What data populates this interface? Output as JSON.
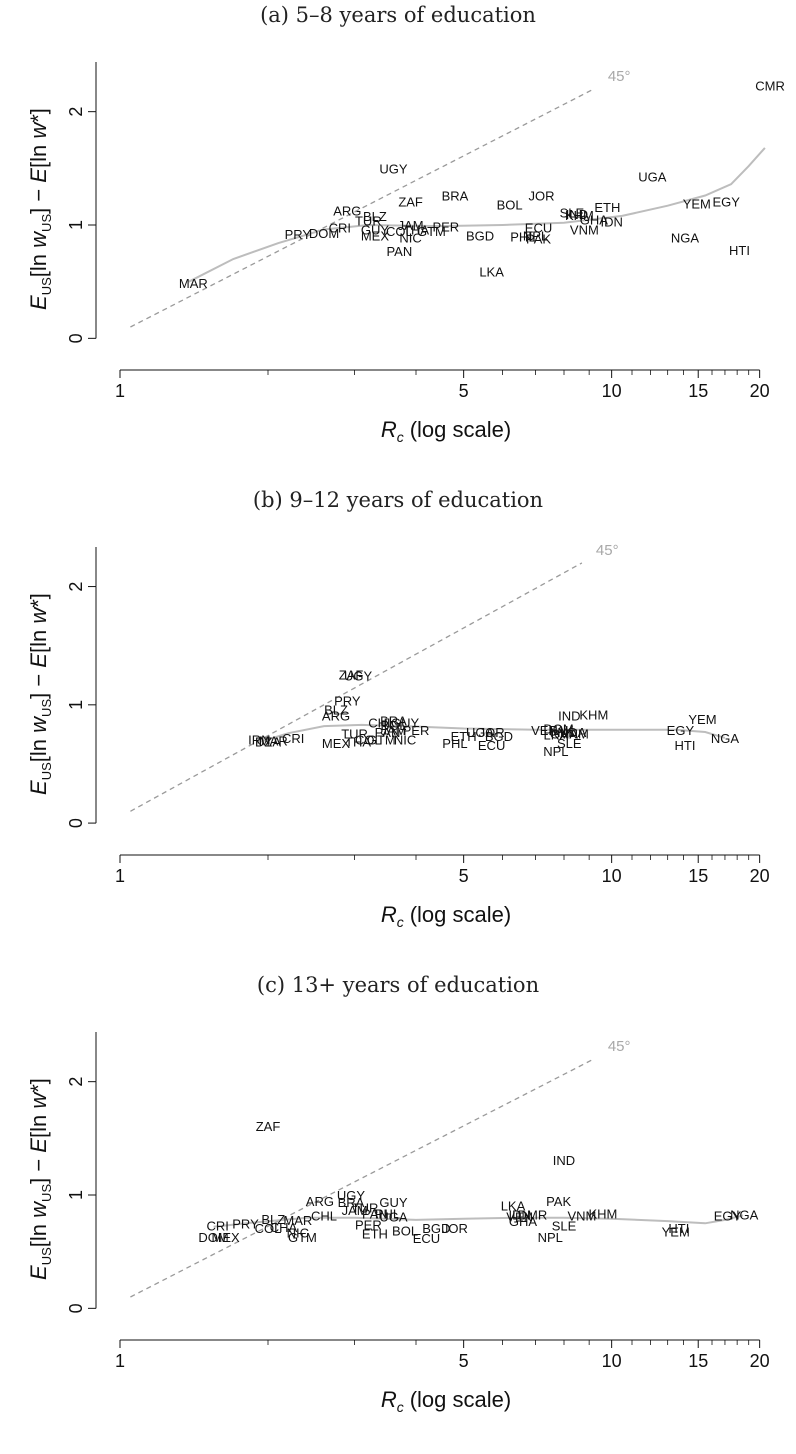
{
  "chart_data": [
    {
      "type": "scatter",
      "title": "(a) 5–8 years of education",
      "xlabel_var": "R",
      "xlabel_sub": "c",
      "xlabel_rest": "(log scale)",
      "xscale": "log",
      "xlim": [
        1,
        22
      ],
      "ylim": [
        -0.05,
        2.35
      ],
      "xticks": [
        1,
        5,
        10,
        15,
        20
      ],
      "yticks": [
        0,
        1,
        2
      ],
      "ref_label": "45°",
      "ref_end_x": 9.2,
      "fit": [
        [
          1.38,
          0.5
        ],
        [
          1.7,
          0.7
        ],
        [
          2.1,
          0.84
        ],
        [
          2.6,
          0.96
        ],
        [
          3.2,
          1.0
        ],
        [
          4.5,
          0.99
        ],
        [
          6,
          1.0
        ],
        [
          8,
          1.02
        ],
        [
          10.5,
          1.08
        ],
        [
          13,
          1.17
        ],
        [
          15.5,
          1.26
        ],
        [
          17.5,
          1.36
        ],
        [
          19,
          1.52
        ],
        [
          20.5,
          1.68
        ]
      ],
      "points": [
        {
          "label": "CMR",
          "x": 21.0,
          "y": 2.22
        },
        {
          "label": "UGY",
          "x": 3.6,
          "y": 1.49
        },
        {
          "label": "UGA",
          "x": 12.1,
          "y": 1.42
        },
        {
          "label": "BRA",
          "x": 4.8,
          "y": 1.25
        },
        {
          "label": "JOR",
          "x": 7.2,
          "y": 1.25
        },
        {
          "label": "BOL",
          "x": 6.2,
          "y": 1.17
        },
        {
          "label": "ZAF",
          "x": 3.9,
          "y": 1.2
        },
        {
          "label": "ETH",
          "x": 9.8,
          "y": 1.15
        },
        {
          "label": "EGY",
          "x": 17.1,
          "y": 1.2
        },
        {
          "label": "YEM",
          "x": 14.9,
          "y": 1.18
        },
        {
          "label": "ARG",
          "x": 2.9,
          "y": 1.12
        },
        {
          "label": "BLZ",
          "x": 3.3,
          "y": 1.07
        },
        {
          "label": "TUR",
          "x": 3.2,
          "y": 1.03
        },
        {
          "label": "SLE",
          "x": 8.3,
          "y": 1.1
        },
        {
          "label": "KHM",
          "x": 8.6,
          "y": 1.08
        },
        {
          "label": "IND",
          "x": 8.5,
          "y": 1.09
        },
        {
          "label": "GHA",
          "x": 9.2,
          "y": 1.04
        },
        {
          "label": "IDN",
          "x": 10.0,
          "y": 1.02
        },
        {
          "label": "JAM",
          "x": 3.9,
          "y": 0.99
        },
        {
          "label": "PER",
          "x": 4.6,
          "y": 0.98
        },
        {
          "label": "CRI",
          "x": 2.8,
          "y": 0.97
        },
        {
          "label": "GUY",
          "x": 3.3,
          "y": 0.95
        },
        {
          "label": "COL",
          "x": 3.7,
          "y": 0.94
        },
        {
          "label": "THA",
          "x": 4.0,
          "y": 0.95
        },
        {
          "label": "GTM",
          "x": 4.3,
          "y": 0.94
        },
        {
          "label": "ECU",
          "x": 7.1,
          "y": 0.97
        },
        {
          "label": "VNM",
          "x": 8.8,
          "y": 0.95
        },
        {
          "label": "DOM",
          "x": 2.6,
          "y": 0.92
        },
        {
          "label": "PRY",
          "x": 2.3,
          "y": 0.91
        },
        {
          "label": "MEX",
          "x": 3.3,
          "y": 0.9
        },
        {
          "label": "NIC",
          "x": 3.9,
          "y": 0.88
        },
        {
          "label": "BGD",
          "x": 5.4,
          "y": 0.9
        },
        {
          "label": "NPL",
          "x": 7.0,
          "y": 0.9
        },
        {
          "label": "PHL",
          "x": 6.6,
          "y": 0.89
        },
        {
          "label": "PAK",
          "x": 7.1,
          "y": 0.87
        },
        {
          "label": "NGA",
          "x": 14.1,
          "y": 0.88
        },
        {
          "label": "HTI",
          "x": 18.2,
          "y": 0.77
        },
        {
          "label": "PAN",
          "x": 3.7,
          "y": 0.76
        },
        {
          "label": "LKA",
          "x": 5.7,
          "y": 0.58
        },
        {
          "label": "MAR",
          "x": 1.41,
          "y": 0.48
        }
      ]
    },
    {
      "type": "scatter",
      "title": "(b) 9–12 years of education",
      "xlabel_var": "R",
      "xlabel_sub": "c",
      "xlabel_rest": "(log scale)",
      "xscale": "log",
      "xlim": [
        1,
        22
      ],
      "ylim": [
        -0.05,
        2.25
      ],
      "xticks": [
        1,
        5,
        10,
        15,
        20
      ],
      "yticks": [
        0,
        1,
        2
      ],
      "ref_label": "45°",
      "ref_end_x": 8.7,
      "fit": [
        [
          1.9,
          0.68
        ],
        [
          2.2,
          0.76
        ],
        [
          2.6,
          0.82
        ],
        [
          3.1,
          0.83
        ],
        [
          3.8,
          0.82
        ],
        [
          5,
          0.8
        ],
        [
          7,
          0.79
        ],
        [
          10,
          0.79
        ],
        [
          13.5,
          0.79
        ],
        [
          15.5,
          0.77
        ],
        [
          17,
          0.72
        ]
      ],
      "points": [
        {
          "label": "ZAF",
          "x": 2.95,
          "y": 1.25
        },
        {
          "label": "UGY",
          "x": 3.05,
          "y": 1.24
        },
        {
          "label": "PRY",
          "x": 2.9,
          "y": 1.03
        },
        {
          "label": "BLZ",
          "x": 2.75,
          "y": 0.95
        },
        {
          "label": "ARG",
          "x": 2.75,
          "y": 0.9
        },
        {
          "label": "IND",
          "x": 8.2,
          "y": 0.9
        },
        {
          "label": "KHM",
          "x": 9.2,
          "y": 0.91
        },
        {
          "label": "YEM",
          "x": 15.3,
          "y": 0.87
        },
        {
          "label": "BRA",
          "x": 3.6,
          "y": 0.86
        },
        {
          "label": "CHL",
          "x": 3.4,
          "y": 0.84
        },
        {
          "label": "GUY",
          "x": 3.8,
          "y": 0.84
        },
        {
          "label": "BOL",
          "x": 3.6,
          "y": 0.82
        },
        {
          "label": "JAM",
          "x": 3.6,
          "y": 0.78
        },
        {
          "label": "PER",
          "x": 4.0,
          "y": 0.78
        },
        {
          "label": "PAN",
          "x": 3.5,
          "y": 0.76
        },
        {
          "label": "UGA",
          "x": 5.4,
          "y": 0.76
        },
        {
          "label": "JOR",
          "x": 5.7,
          "y": 0.76
        },
        {
          "label": "VEN",
          "x": 7.3,
          "y": 0.78
        },
        {
          "label": "DOM",
          "x": 7.8,
          "y": 0.79
        },
        {
          "label": "PAK",
          "x": 7.9,
          "y": 0.78
        },
        {
          "label": "EGY",
          "x": 13.8,
          "y": 0.78
        },
        {
          "label": "TUR",
          "x": 3.0,
          "y": 0.75
        },
        {
          "label": "ETH",
          "x": 5.0,
          "y": 0.73
        },
        {
          "label": "BGD",
          "x": 5.9,
          "y": 0.73
        },
        {
          "label": "LKA",
          "x": 7.7,
          "y": 0.74
        },
        {
          "label": "GHA",
          "x": 8.0,
          "y": 0.75
        },
        {
          "label": "VNM",
          "x": 8.4,
          "y": 0.75
        },
        {
          "label": "MDA",
          "x": 8.3,
          "y": 0.76
        },
        {
          "label": "NGA",
          "x": 17.0,
          "y": 0.71
        },
        {
          "label": "COL",
          "x": 3.2,
          "y": 0.7
        },
        {
          "label": "GTM",
          "x": 3.4,
          "y": 0.7
        },
        {
          "label": "NIC",
          "x": 3.8,
          "y": 0.7
        },
        {
          "label": "CRI",
          "x": 2.25,
          "y": 0.71
        },
        {
          "label": "IRN",
          "x": 1.92,
          "y": 0.7
        },
        {
          "label": "MAR",
          "x": 2.05,
          "y": 0.69
        },
        {
          "label": "DZA",
          "x": 2.0,
          "y": 0.68
        },
        {
          "label": "THA",
          "x": 3.05,
          "y": 0.68
        },
        {
          "label": "MEX",
          "x": 2.75,
          "y": 0.67
        },
        {
          "label": "PHL",
          "x": 4.8,
          "y": 0.67
        },
        {
          "label": "ECU",
          "x": 5.7,
          "y": 0.65
        },
        {
          "label": "SLE",
          "x": 8.2,
          "y": 0.67
        },
        {
          "label": "HTI",
          "x": 14.1,
          "y": 0.65
        },
        {
          "label": "NPL",
          "x": 7.7,
          "y": 0.6
        }
      ]
    },
    {
      "type": "scatter",
      "title": "(c) 13+ years of education",
      "xlabel_var": "R",
      "xlabel_sub": "c",
      "xlabel_rest": "(log scale)",
      "xscale": "log",
      "xlim": [
        1,
        22
      ],
      "ylim": [
        -0.05,
        2.35
      ],
      "xticks": [
        1,
        5,
        10,
        15,
        20
      ],
      "yticks": [
        0,
        1,
        2
      ],
      "ref_label": "45°",
      "ref_end_x": 9.2,
      "fit": [
        [
          1.55,
          0.72
        ],
        [
          1.9,
          0.76
        ],
        [
          2.4,
          0.8
        ],
        [
          3,
          0.8
        ],
        [
          4,
          0.78
        ],
        [
          5,
          0.79
        ],
        [
          6.5,
          0.8
        ],
        [
          8,
          0.8
        ],
        [
          10,
          0.79
        ],
        [
          13,
          0.77
        ],
        [
          15.5,
          0.75
        ],
        [
          17,
          0.78
        ],
        [
          18.5,
          0.82
        ]
      ],
      "points": [
        {
          "label": "ZAF",
          "x": 2.0,
          "y": 1.6
        },
        {
          "label": "IND",
          "x": 8.0,
          "y": 1.3
        },
        {
          "label": "UGY",
          "x": 2.95,
          "y": 0.99
        },
        {
          "label": "ARG",
          "x": 2.55,
          "y": 0.94
        },
        {
          "label": "PAK",
          "x": 7.8,
          "y": 0.94
        },
        {
          "label": "GUY",
          "x": 3.6,
          "y": 0.93
        },
        {
          "label": "BRA",
          "x": 2.95,
          "y": 0.93
        },
        {
          "label": "LKA",
          "x": 6.3,
          "y": 0.9
        },
        {
          "label": "TUR",
          "x": 3.15,
          "y": 0.88
        },
        {
          "label": "JAM",
          "x": 3.0,
          "y": 0.86
        },
        {
          "label": "PAN",
          "x": 3.3,
          "y": 0.83
        },
        {
          "label": "PHL",
          "x": 3.5,
          "y": 0.83
        },
        {
          "label": "CHL",
          "x": 2.6,
          "y": 0.81
        },
        {
          "label": "UGA",
          "x": 3.6,
          "y": 0.8
        },
        {
          "label": "IDN",
          "x": 6.5,
          "y": 0.82
        },
        {
          "label": "DMR",
          "x": 6.9,
          "y": 0.82
        },
        {
          "label": "VEN",
          "x": 6.5,
          "y": 0.8
        },
        {
          "label": "KHM",
          "x": 9.6,
          "y": 0.83
        },
        {
          "label": "VNM",
          "x": 8.7,
          "y": 0.81
        },
        {
          "label": "EGY",
          "x": 17.2,
          "y": 0.81
        },
        {
          "label": "NGA",
          "x": 18.6,
          "y": 0.82
        },
        {
          "label": "BLZ",
          "x": 2.05,
          "y": 0.78
        },
        {
          "label": "MAR",
          "x": 2.3,
          "y": 0.77
        },
        {
          "label": "GHA",
          "x": 6.6,
          "y": 0.76
        },
        {
          "label": "CRI",
          "x": 1.58,
          "y": 0.72
        },
        {
          "label": "PRY",
          "x": 1.8,
          "y": 0.74
        },
        {
          "label": "COL",
          "x": 2.0,
          "y": 0.7
        },
        {
          "label": "CHA",
          "x": 2.15,
          "y": 0.71
        },
        {
          "label": "PER",
          "x": 3.2,
          "y": 0.73
        },
        {
          "label": "SLE",
          "x": 8.0,
          "y": 0.72
        },
        {
          "label": "BGD",
          "x": 4.4,
          "y": 0.7
        },
        {
          "label": "JOR",
          "x": 4.8,
          "y": 0.7
        },
        {
          "label": "BOL",
          "x": 3.8,
          "y": 0.68
        },
        {
          "label": "NIC",
          "x": 2.3,
          "y": 0.66
        },
        {
          "label": "ETH",
          "x": 3.3,
          "y": 0.65
        },
        {
          "label": "HTI",
          "x": 13.7,
          "y": 0.7
        },
        {
          "label": "YEM",
          "x": 13.5,
          "y": 0.67
        },
        {
          "label": "DOM",
          "x": 1.55,
          "y": 0.62
        },
        {
          "label": "MEX",
          "x": 1.64,
          "y": 0.62
        },
        {
          "label": "GTM",
          "x": 2.35,
          "y": 0.62
        },
        {
          "label": "ECU",
          "x": 4.2,
          "y": 0.61
        },
        {
          "label": "NPL",
          "x": 7.5,
          "y": 0.62
        }
      ]
    }
  ],
  "ylabel": {
    "e": "E",
    "us": "US",
    "mid": "[ln ",
    "w": "w",
    "us2": "US",
    "mid2": "] − ",
    "e2": "E",
    "mid3": "[ln ",
    "w2": "w",
    "tail": "*]"
  }
}
